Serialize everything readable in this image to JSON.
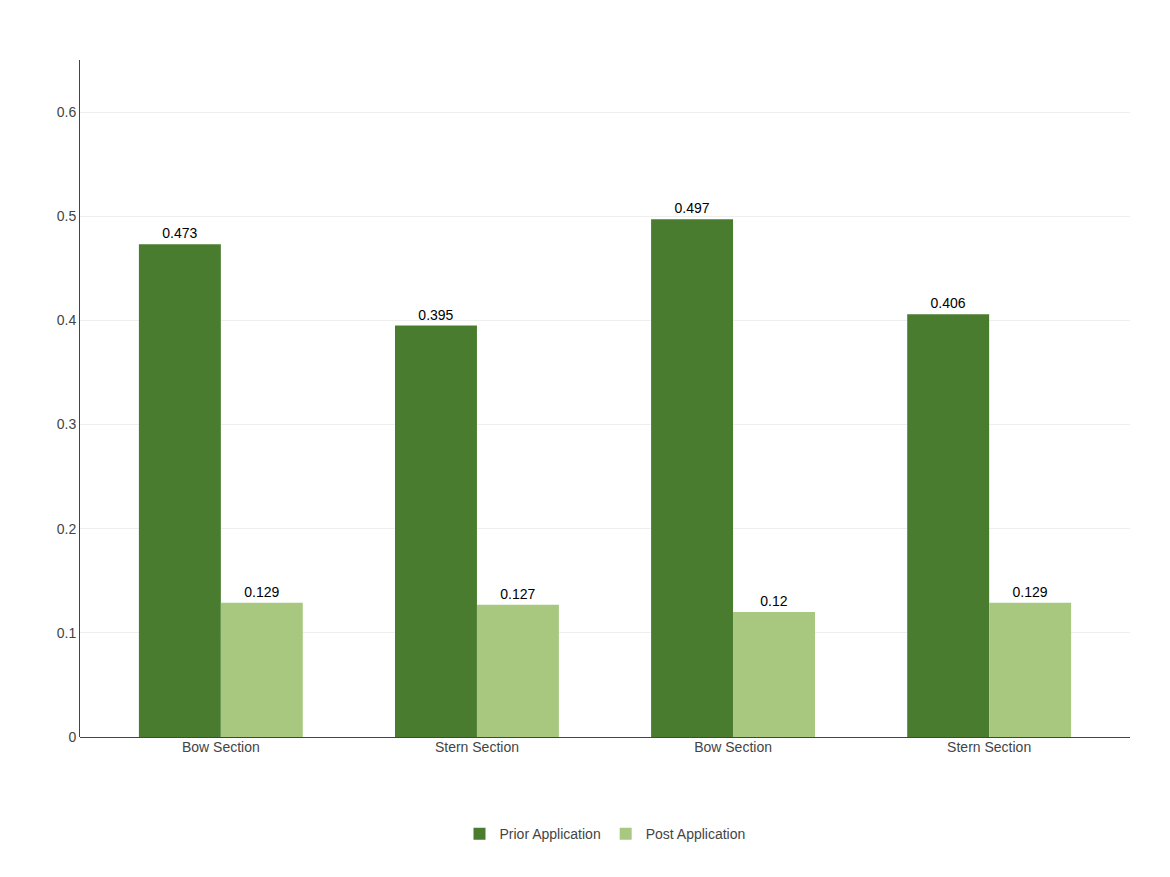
{
  "chart_data": {
    "type": "bar",
    "categories": [
      "Bow Section",
      "Stern Section",
      "Bow Section",
      "Stern Section"
    ],
    "series": [
      {
        "name": "Prior Application",
        "color": "#4a7c2f",
        "values": [
          0.473,
          0.395,
          0.497,
          0.406
        ]
      },
      {
        "name": "Post Application",
        "color": "#a8c880",
        "values": [
          0.129,
          0.127,
          0.12,
          0.129
        ]
      }
    ],
    "ylim": [
      0,
      0.65
    ],
    "yticks": [
      0,
      0.1,
      0.2,
      0.3,
      0.4,
      0.5,
      0.6
    ],
    "grid": true,
    "data_labels": true,
    "legend": "bottom"
  }
}
